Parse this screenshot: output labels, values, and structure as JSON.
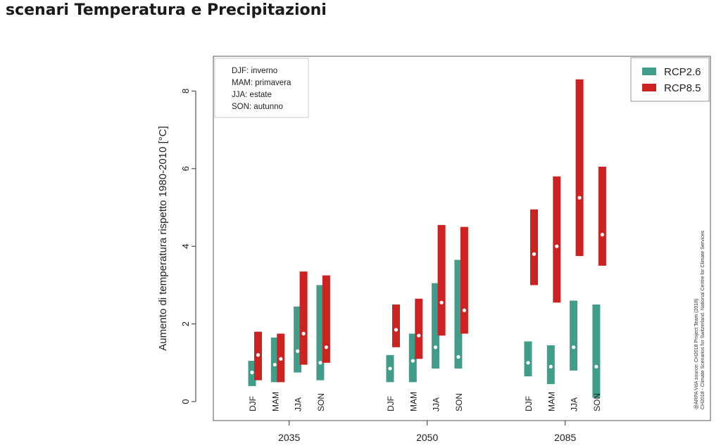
{
  "page": {
    "title": "scenari Temperatura e Precipitazioni"
  },
  "colors": {
    "rcp26": "#3f9d8a",
    "rcp85": "#cc2222",
    "median_dot": "#ffffff"
  },
  "chart_data": {
    "type": "bar",
    "subtype": "floating-range",
    "title": "",
    "xlabel": "",
    "ylabel": "Aumento di temperatura rispetto 1980-2010 [°C]",
    "ylim": [
      -0.4,
      8.8
    ],
    "yticks": [
      0,
      2,
      4,
      6,
      8
    ],
    "grid": false,
    "legend_position": "top-right",
    "groups": [
      "2035",
      "2050",
      "2085"
    ],
    "seasons": [
      "DJF",
      "MAM",
      "JJA",
      "SON"
    ],
    "season_note": [
      "DJF: inverno",
      "MAM: primavera",
      "JJA: estate",
      "SON: autunno"
    ],
    "series": [
      {
        "name": "RCP2.6",
        "color": "#3f9d8a",
        "ranges": [
          [
            {
              "min": 0.4,
              "median": 0.75,
              "max": 1.05
            },
            {
              "min": 0.5,
              "median": 0.95,
              "max": 1.65
            },
            {
              "min": 0.75,
              "median": 1.3,
              "max": 2.45
            },
            {
              "min": 0.55,
              "median": 1.0,
              "max": 3.0
            }
          ],
          [
            {
              "min": 0.5,
              "median": 0.85,
              "max": 1.2
            },
            {
              "min": 0.5,
              "median": 1.05,
              "max": 1.75
            },
            {
              "min": 0.85,
              "median": 1.4,
              "max": 3.05
            },
            {
              "min": 0.85,
              "median": 1.15,
              "max": 3.65
            }
          ],
          [
            {
              "min": 0.65,
              "median": 1.0,
              "max": 1.55
            },
            {
              "min": 0.45,
              "median": 0.9,
              "max": 1.45
            },
            {
              "min": 0.8,
              "median": 1.4,
              "max": 2.6
            },
            {
              "min": 0.1,
              "median": 0.9,
              "max": 2.5
            }
          ]
        ]
      },
      {
        "name": "RCP8.5",
        "color": "#cc2222",
        "ranges": [
          [
            {
              "min": 0.55,
              "median": 1.2,
              "max": 1.8
            },
            {
              "min": 0.5,
              "median": 1.1,
              "max": 1.75
            },
            {
              "min": 0.95,
              "median": 1.75,
              "max": 3.35
            },
            {
              "min": 1.0,
              "median": 1.4,
              "max": 3.25
            }
          ],
          [
            {
              "min": 1.4,
              "median": 1.85,
              "max": 2.5
            },
            {
              "min": 1.1,
              "median": 1.7,
              "max": 2.65
            },
            {
              "min": 1.7,
              "median": 2.55,
              "max": 4.55
            },
            {
              "min": 1.75,
              "median": 2.35,
              "max": 4.5
            }
          ],
          [
            {
              "min": 3.0,
              "median": 3.8,
              "max": 4.95
            },
            {
              "min": 2.55,
              "median": 4.0,
              "max": 5.8
            },
            {
              "min": 3.75,
              "median": 5.25,
              "max": 8.3
            },
            {
              "min": 3.5,
              "median": 4.3,
              "max": 6.05
            }
          ]
        ]
      }
    ],
    "annotations": [
      "@ARPA VdA source: CH2018 Project Team (2018)",
      "CH2018 - Climate Scenarios for Switzerland. National Centre for Climate Services"
    ]
  }
}
